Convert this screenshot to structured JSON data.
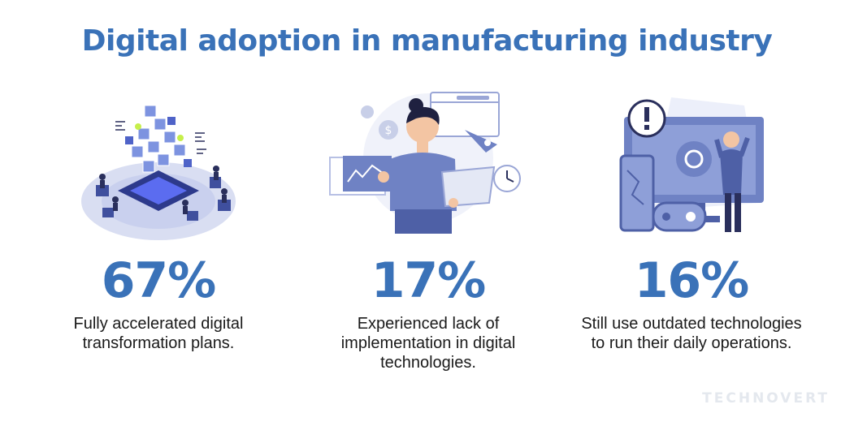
{
  "title": "Digital adoption in manufacturing industry",
  "stats": [
    {
      "value": "67%",
      "description": "Fully accelerated digital transformation plans."
    },
    {
      "value": "17%",
      "description": "Experienced lack of implementation in digital technologies."
    },
    {
      "value": "16%",
      "description": "Still use outdated technologies to run their daily operations."
    }
  ],
  "brand": "TECHNOVERT",
  "colors": {
    "accent": "#3a72b8",
    "illustration": "#6f82c4",
    "light": "#d9def2",
    "text": "#1a1a1a"
  },
  "icons": [
    "digital-cubes-illustration",
    "analyst-illustration",
    "outdated-tech-illustration"
  ]
}
